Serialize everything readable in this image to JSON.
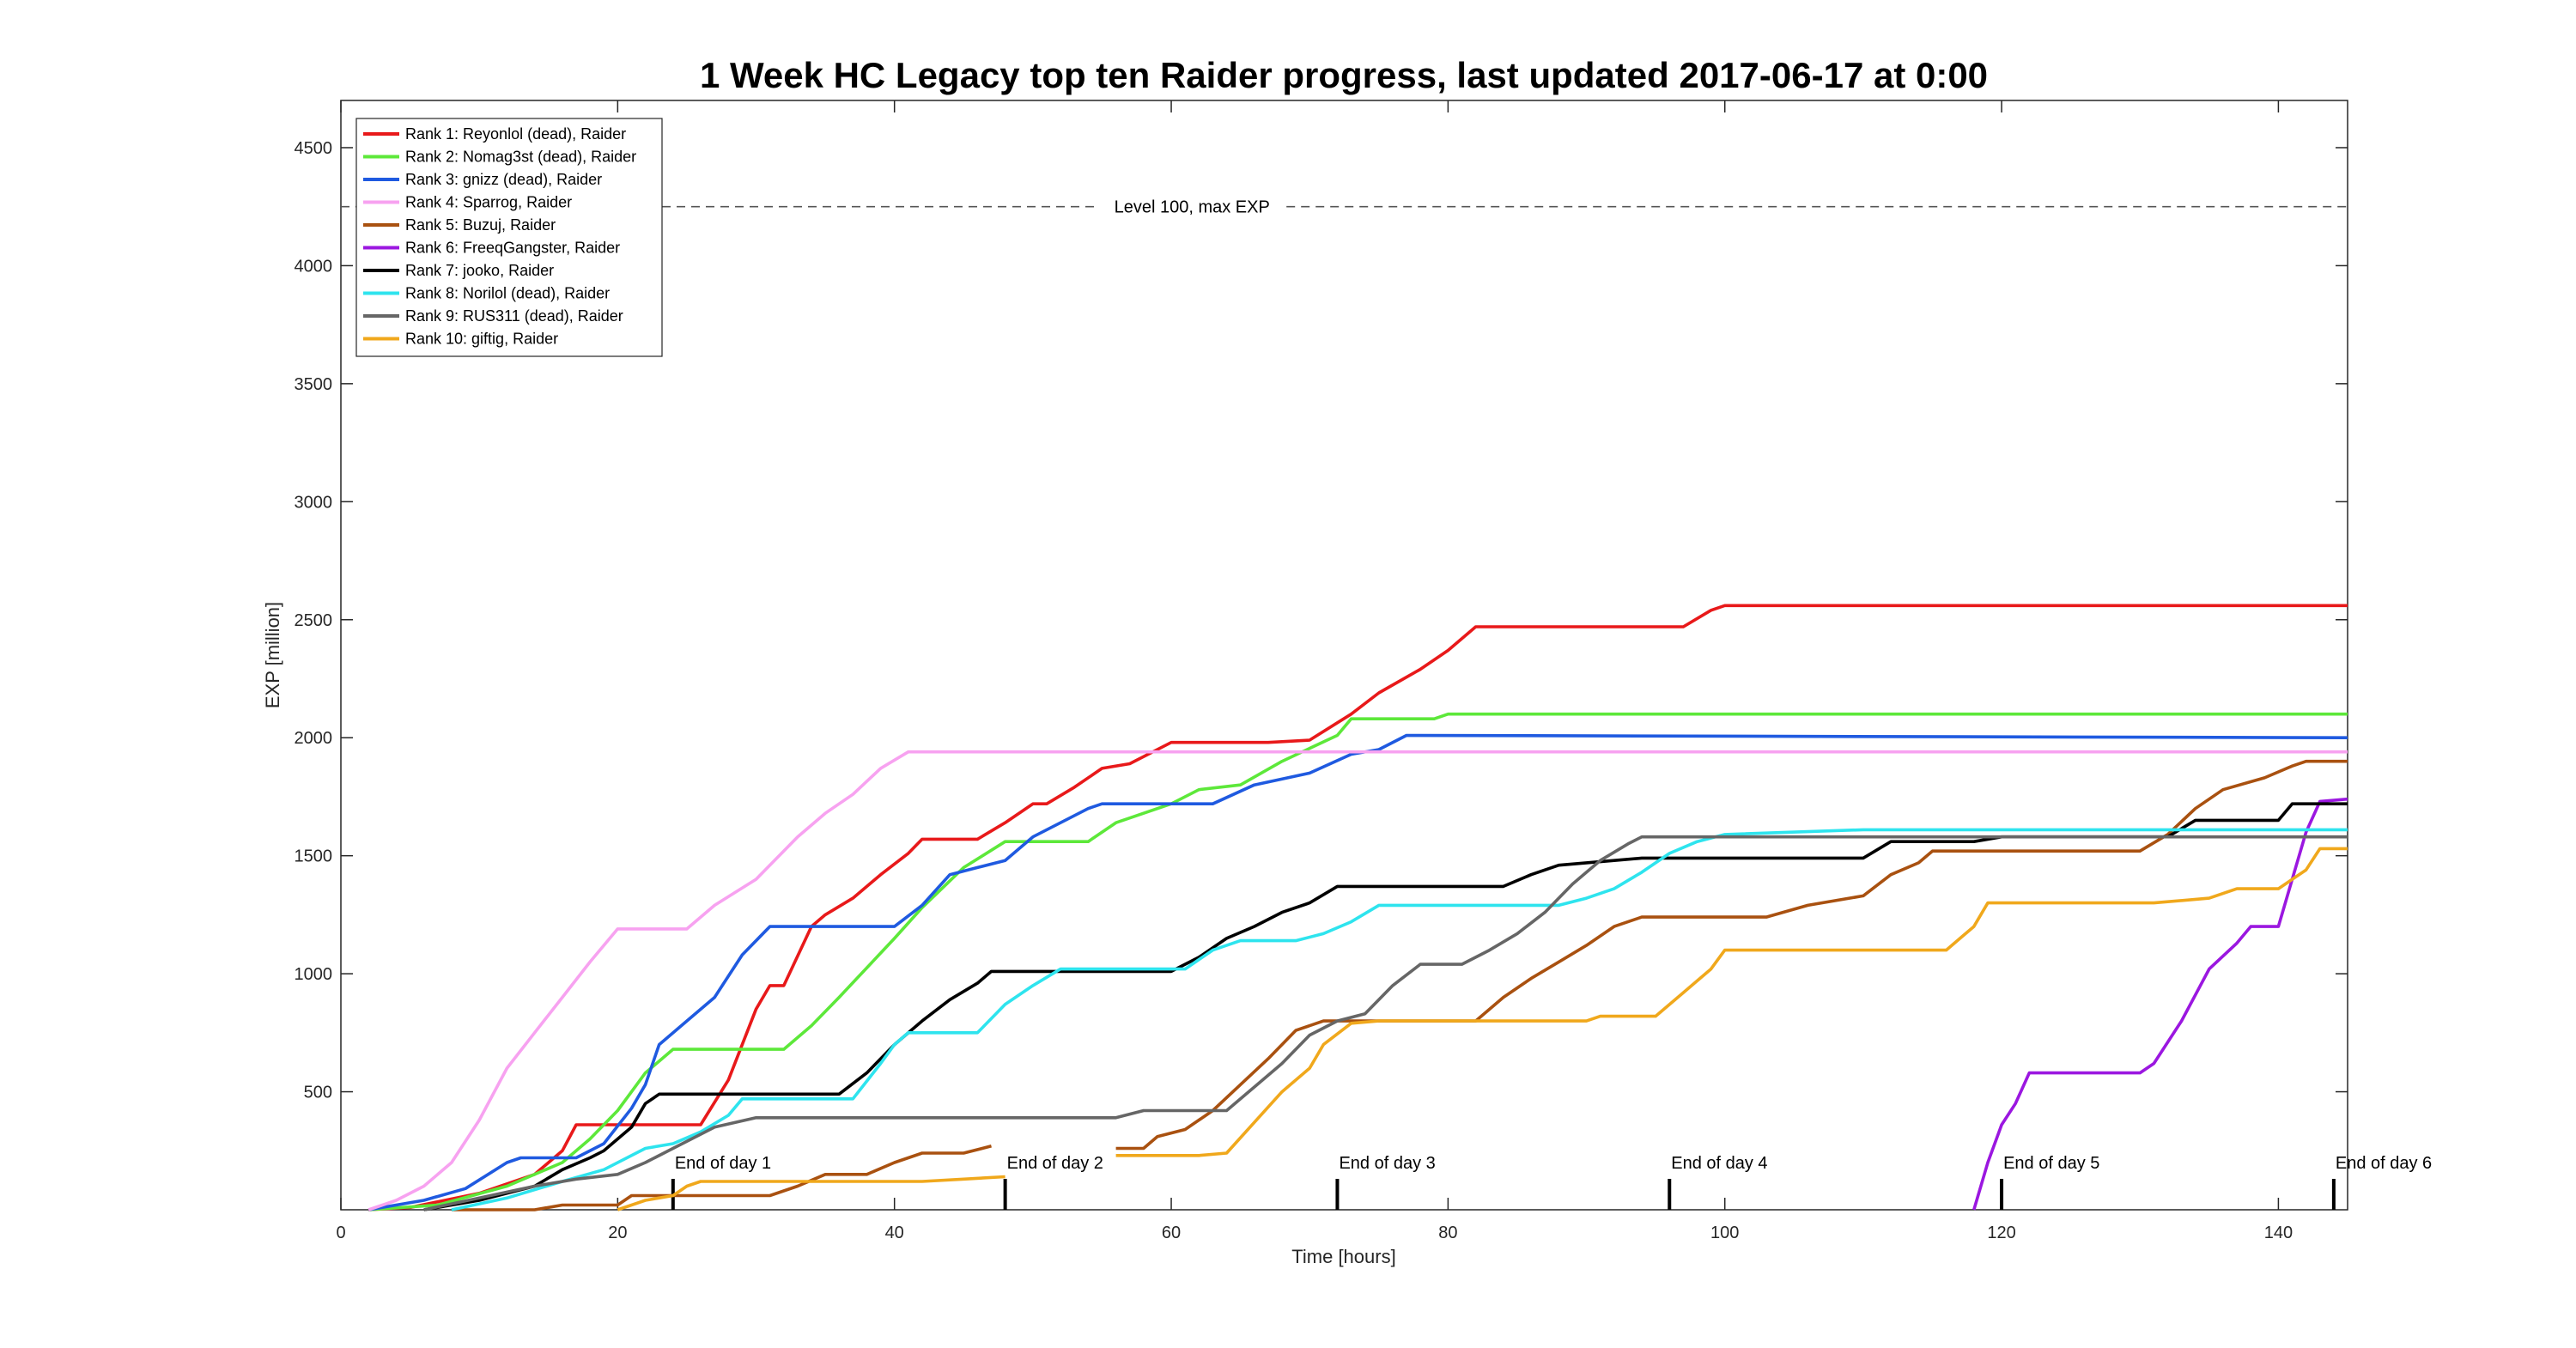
{
  "chart_data": {
    "type": "line",
    "title": "1 Week HC Legacy top ten Raider progress, last updated 2017-06-17 at 0:00",
    "xlabel": "Time [hours]",
    "ylabel": "EXP [million]",
    "xlim": [
      0,
      145
    ],
    "ylim": [
      0,
      4700
    ],
    "xticks": [
      0,
      20,
      40,
      60,
      80,
      100,
      120,
      140
    ],
    "yticks": [
      500,
      1000,
      1500,
      2000,
      2500,
      3000,
      3500,
      4000,
      4500
    ],
    "grid": false,
    "legend_position": "top-left",
    "max_level_line": {
      "y": 4250,
      "label": "Level 100, max EXP"
    },
    "day_markers": [
      {
        "x": 24,
        "label": "End of day 1"
      },
      {
        "x": 48,
        "label": "End of day 2"
      },
      {
        "x": 72,
        "label": "End of day 3"
      },
      {
        "x": 96,
        "label": "End of day 4"
      },
      {
        "x": 120,
        "label": "End of day 5"
      },
      {
        "x": 144,
        "label": "End of day 6"
      }
    ],
    "series": [
      {
        "name": "Rank 1: Reyonlol (dead), Raider",
        "color": "#e8191a",
        "points": [
          [
            2,
            0
          ],
          [
            5,
            10
          ],
          [
            10,
            70
          ],
          [
            14,
            150
          ],
          [
            16,
            250
          ],
          [
            17,
            360
          ],
          [
            20,
            360
          ],
          [
            26,
            360
          ],
          [
            28,
            550
          ],
          [
            30,
            850
          ],
          [
            31,
            950
          ],
          [
            32,
            950
          ],
          [
            34,
            1200
          ],
          [
            35,
            1250
          ],
          [
            37,
            1320
          ],
          [
            39,
            1420
          ],
          [
            41,
            1510
          ],
          [
            42,
            1570
          ],
          [
            46,
            1570
          ],
          [
            48,
            1640
          ],
          [
            50,
            1720
          ],
          [
            51,
            1720
          ],
          [
            53,
            1790
          ],
          [
            55,
            1870
          ],
          [
            57,
            1890
          ],
          [
            60,
            1980
          ],
          [
            67,
            1980
          ],
          [
            70,
            1990
          ],
          [
            73,
            2100
          ],
          [
            75,
            2190
          ],
          [
            78,
            2290
          ],
          [
            80,
            2370
          ],
          [
            82,
            2470
          ],
          [
            97,
            2470
          ],
          [
            99,
            2540
          ],
          [
            100,
            2560
          ],
          [
            145,
            2560
          ]
        ]
      },
      {
        "name": "Rank 2: Nomag3st (dead), Raider",
        "color": "#5de83a",
        "points": [
          [
            2,
            0
          ],
          [
            7,
            20
          ],
          [
            12,
            100
          ],
          [
            16,
            200
          ],
          [
            18,
            300
          ],
          [
            20,
            420
          ],
          [
            22,
            580
          ],
          [
            24,
            680
          ],
          [
            32,
            680
          ],
          [
            34,
            780
          ],
          [
            36,
            900
          ],
          [
            40,
            1150
          ],
          [
            42,
            1280
          ],
          [
            45,
            1450
          ],
          [
            48,
            1560
          ],
          [
            54,
            1560
          ],
          [
            56,
            1640
          ],
          [
            60,
            1720
          ],
          [
            62,
            1780
          ],
          [
            65,
            1800
          ],
          [
            68,
            1900
          ],
          [
            72,
            2010
          ],
          [
            73,
            2080
          ],
          [
            79,
            2080
          ],
          [
            80,
            2100
          ],
          [
            145,
            2100
          ]
        ]
      },
      {
        "name": "Rank 3: gnizz (dead), Raider",
        "color": "#1f5ae0",
        "points": [
          [
            2,
            0
          ],
          [
            6,
            40
          ],
          [
            9,
            90
          ],
          [
            12,
            200
          ],
          [
            13,
            220
          ],
          [
            17,
            220
          ],
          [
            19,
            280
          ],
          [
            21,
            430
          ],
          [
            22,
            530
          ],
          [
            23,
            700
          ],
          [
            25,
            800
          ],
          [
            27,
            900
          ],
          [
            29,
            1080
          ],
          [
            31,
            1200
          ],
          [
            40,
            1200
          ],
          [
            42,
            1290
          ],
          [
            44,
            1420
          ],
          [
            46,
            1450
          ],
          [
            48,
            1480
          ],
          [
            50,
            1580
          ],
          [
            52,
            1640
          ],
          [
            54,
            1700
          ],
          [
            55,
            1720
          ],
          [
            63,
            1720
          ],
          [
            66,
            1800
          ],
          [
            70,
            1850
          ],
          [
            73,
            1930
          ],
          [
            75,
            1950
          ],
          [
            77,
            2010
          ],
          [
            145,
            2000
          ]
        ]
      },
      {
        "name": "Rank 4: Sparrog, Raider",
        "color": "#f7a2f0",
        "points": [
          [
            2,
            0
          ],
          [
            4,
            40
          ],
          [
            6,
            100
          ],
          [
            8,
            200
          ],
          [
            10,
            380
          ],
          [
            12,
            600
          ],
          [
            14,
            750
          ],
          [
            16,
            900
          ],
          [
            18,
            1050
          ],
          [
            20,
            1190
          ],
          [
            25,
            1190
          ],
          [
            27,
            1290
          ],
          [
            30,
            1400
          ],
          [
            33,
            1580
          ],
          [
            35,
            1680
          ],
          [
            37,
            1760
          ],
          [
            39,
            1870
          ],
          [
            41,
            1940
          ],
          [
            145,
            1940
          ]
        ]
      },
      {
        "name": "Rank 5: Buzuj, Raider",
        "color": "#a95110",
        "points": [
          [
            8,
            0
          ],
          [
            14,
            0
          ],
          [
            16,
            20
          ],
          [
            20,
            20
          ],
          [
            21,
            60
          ],
          [
            24,
            60
          ],
          [
            31,
            60
          ],
          [
            33,
            100
          ],
          [
            35,
            150
          ],
          [
            38,
            150
          ],
          [
            40,
            200
          ],
          [
            42,
            240
          ],
          [
            45,
            240
          ],
          [
            47,
            270
          ],
          [
            56,
            260
          ],
          [
            58,
            260
          ],
          [
            59,
            310
          ],
          [
            61,
            340
          ],
          [
            63,
            420
          ],
          [
            65,
            530
          ],
          [
            67,
            640
          ],
          [
            69,
            760
          ],
          [
            71,
            800
          ],
          [
            73,
            800
          ],
          [
            82,
            800
          ],
          [
            84,
            900
          ],
          [
            86,
            980
          ],
          [
            88,
            1050
          ],
          [
            90,
            1120
          ],
          [
            92,
            1200
          ],
          [
            94,
            1240
          ],
          [
            103,
            1240
          ],
          [
            106,
            1290
          ],
          [
            110,
            1330
          ],
          [
            112,
            1420
          ],
          [
            114,
            1470
          ],
          [
            115,
            1520
          ],
          [
            130,
            1520
          ],
          [
            132,
            1590
          ],
          [
            134,
            1700
          ],
          [
            136,
            1780
          ],
          [
            139,
            1830
          ],
          [
            141,
            1880
          ],
          [
            142,
            1900
          ],
          [
            145,
            1900
          ]
        ]
      },
      {
        "name": "Rank 6: FreeqGangster, Raider",
        "color": "#9b17e0",
        "points": [
          [
            118,
            0
          ],
          [
            119,
            200
          ],
          [
            120,
            360
          ],
          [
            121,
            450
          ],
          [
            122,
            580
          ],
          [
            130,
            580
          ],
          [
            131,
            620
          ],
          [
            133,
            800
          ],
          [
            135,
            1020
          ],
          [
            137,
            1130
          ],
          [
            138,
            1200
          ],
          [
            140,
            1200
          ],
          [
            141,
            1400
          ],
          [
            142,
            1600
          ],
          [
            143,
            1730
          ],
          [
            145,
            1740
          ]
        ]
      },
      {
        "name": "Rank 7: jooko, Raider",
        "color": "#000000",
        "points": [
          [
            6,
            0
          ],
          [
            10,
            40
          ],
          [
            14,
            100
          ],
          [
            16,
            170
          ],
          [
            18,
            220
          ],
          [
            19,
            250
          ],
          [
            21,
            350
          ],
          [
            22,
            450
          ],
          [
            23,
            490
          ],
          [
            36,
            490
          ],
          [
            38,
            580
          ],
          [
            40,
            700
          ],
          [
            42,
            800
          ],
          [
            44,
            890
          ],
          [
            46,
            960
          ],
          [
            47,
            1010
          ],
          [
            52,
            1010
          ],
          [
            60,
            1010
          ],
          [
            62,
            1070
          ],
          [
            64,
            1150
          ],
          [
            66,
            1200
          ],
          [
            68,
            1260
          ],
          [
            70,
            1300
          ],
          [
            72,
            1370
          ],
          [
            84,
            1370
          ],
          [
            86,
            1420
          ],
          [
            88,
            1460
          ],
          [
            92,
            1480
          ],
          [
            94,
            1490
          ],
          [
            110,
            1490
          ],
          [
            112,
            1560
          ],
          [
            118,
            1560
          ],
          [
            120,
            1580
          ],
          [
            132,
            1580
          ],
          [
            134,
            1650
          ],
          [
            140,
            1650
          ],
          [
            141,
            1720
          ],
          [
            145,
            1720
          ]
        ]
      },
      {
        "name": "Rank 8: Norilol (dead), Raider",
        "color": "#2ee4ee",
        "points": [
          [
            8,
            0
          ],
          [
            12,
            50
          ],
          [
            16,
            120
          ],
          [
            19,
            170
          ],
          [
            22,
            260
          ],
          [
            24,
            280
          ],
          [
            26,
            330
          ],
          [
            28,
            400
          ],
          [
            29,
            470
          ],
          [
            37,
            470
          ],
          [
            39,
            620
          ],
          [
            40,
            700
          ],
          [
            41,
            750
          ],
          [
            46,
            750
          ],
          [
            48,
            870
          ],
          [
            50,
            950
          ],
          [
            52,
            1020
          ],
          [
            61,
            1020
          ],
          [
            63,
            1100
          ],
          [
            65,
            1140
          ],
          [
            69,
            1140
          ],
          [
            71,
            1170
          ],
          [
            73,
            1220
          ],
          [
            75,
            1290
          ],
          [
            88,
            1290
          ],
          [
            90,
            1320
          ],
          [
            92,
            1360
          ],
          [
            94,
            1430
          ],
          [
            96,
            1510
          ],
          [
            98,
            1560
          ],
          [
            100,
            1590
          ],
          [
            110,
            1610
          ],
          [
            145,
            1610
          ]
        ]
      },
      {
        "name": "Rank 9: RUS311 (dead), Raider",
        "color": "#666666",
        "points": [
          [
            6,
            0
          ],
          [
            10,
            50
          ],
          [
            14,
            100
          ],
          [
            17,
            130
          ],
          [
            20,
            150
          ],
          [
            22,
            200
          ],
          [
            24,
            260
          ],
          [
            27,
            350
          ],
          [
            30,
            390
          ],
          [
            56,
            390
          ],
          [
            58,
            420
          ],
          [
            64,
            420
          ],
          [
            66,
            520
          ],
          [
            68,
            620
          ],
          [
            70,
            740
          ],
          [
            72,
            800
          ],
          [
            74,
            830
          ],
          [
            76,
            950
          ],
          [
            78,
            1040
          ],
          [
            81,
            1040
          ],
          [
            83,
            1100
          ],
          [
            85,
            1170
          ],
          [
            87,
            1260
          ],
          [
            89,
            1380
          ],
          [
            91,
            1480
          ],
          [
            93,
            1550
          ],
          [
            94,
            1580
          ],
          [
            145,
            1580
          ]
        ]
      },
      {
        "name": "Rank 10: giftig, Raider",
        "color": "#f0a81c",
        "points": [
          [
            20,
            0
          ],
          [
            22,
            40
          ],
          [
            24,
            60
          ],
          [
            25,
            100
          ],
          [
            26,
            120
          ],
          [
            35,
            120
          ],
          [
            42,
            120
          ],
          [
            45,
            130
          ],
          [
            48,
            140
          ],
          [
            56,
            230
          ],
          [
            62,
            230
          ],
          [
            64,
            240
          ],
          [
            66,
            370
          ],
          [
            68,
            500
          ],
          [
            70,
            600
          ],
          [
            71,
            700
          ],
          [
            73,
            790
          ],
          [
            75,
            800
          ],
          [
            90,
            800
          ],
          [
            91,
            820
          ],
          [
            95,
            820
          ],
          [
            97,
            920
          ],
          [
            99,
            1020
          ],
          [
            100,
            1100
          ],
          [
            116,
            1100
          ],
          [
            118,
            1200
          ],
          [
            119,
            1300
          ],
          [
            131,
            1300
          ],
          [
            135,
            1320
          ],
          [
            137,
            1360
          ],
          [
            140,
            1360
          ],
          [
            142,
            1440
          ],
          [
            143,
            1530
          ],
          [
            145,
            1530
          ]
        ]
      }
    ]
  }
}
